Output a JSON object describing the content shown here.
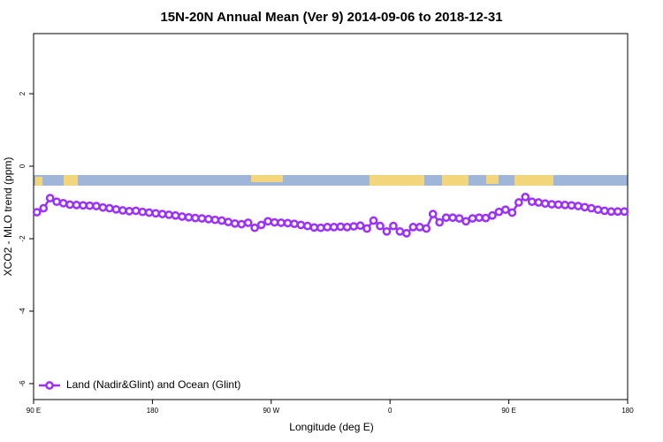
{
  "chart_data": {
    "type": "line",
    "title": "15N-20N Annual Mean (Ver 9)   2014-09-06 to 2018-12-31",
    "xlabel": "Longitude (deg E)",
    "ylabel": "XCO2 - MLO trend (ppm)",
    "x": [
      92.5,
      97.5,
      102.5,
      107.5,
      112.5,
      117.5,
      122.5,
      127.5,
      132.5,
      137.5,
      142.5,
      147.5,
      152.5,
      157.5,
      162.5,
      167.5,
      172.5,
      177.5,
      182.5,
      187.5,
      192.5,
      197.5,
      202.5,
      207.5,
      212.5,
      217.5,
      222.5,
      227.5,
      232.5,
      237.5,
      242.5,
      247.5,
      252.5,
      257.5,
      262.5,
      267.5,
      272.5,
      277.5,
      282.5,
      287.5,
      292.5,
      297.5,
      302.5,
      307.5,
      312.5,
      317.5,
      322.5,
      327.5,
      332.5,
      337.5,
      342.5,
      347.5,
      352.5,
      357.5,
      362.5,
      367.5,
      372.5,
      377.5,
      382.5,
      387.5,
      392.5,
      397.5,
      402.5,
      407.5,
      412.5,
      417.5,
      422.5,
      427.5,
      432.5,
      437.5,
      442.5,
      447.5,
      452.5,
      457.5,
      462.5,
      467.5,
      472.5,
      477.5,
      482.5,
      487.5,
      492.5,
      497.5,
      502.5,
      507.5,
      512.5,
      517.5,
      522.5,
      527.5,
      532.5,
      537.5
    ],
    "series": [
      {
        "name": "Land (Nadir&Glint) and Ocean (Glint)",
        "color": "#9b30ff",
        "values": [
          -1.27,
          -1.16,
          -0.88,
          -0.98,
          -1.02,
          -1.06,
          -1.07,
          -1.08,
          -1.09,
          -1.1,
          -1.14,
          -1.16,
          -1.19,
          -1.22,
          -1.24,
          -1.23,
          -1.26,
          -1.28,
          -1.3,
          -1.32,
          -1.34,
          -1.36,
          -1.39,
          -1.41,
          -1.43,
          -1.44,
          -1.46,
          -1.48,
          -1.5,
          -1.54,
          -1.58,
          -1.6,
          -1.56,
          -1.7,
          -1.62,
          -1.52,
          -1.55,
          -1.56,
          -1.57,
          -1.59,
          -1.62,
          -1.65,
          -1.69,
          -1.7,
          -1.68,
          -1.68,
          -1.67,
          -1.68,
          -1.66,
          -1.64,
          -1.72,
          -1.5,
          -1.65,
          -1.8,
          -1.65,
          -1.8,
          -1.85,
          -1.68,
          -1.68,
          -1.72,
          -1.32,
          -1.55,
          -1.42,
          -1.42,
          -1.44,
          -1.52,
          -1.44,
          -1.42,
          -1.43,
          -1.36,
          -1.26,
          -1.2,
          -1.28,
          -1.0,
          -0.85,
          -0.98,
          -1.0,
          -1.03,
          -1.05,
          -1.06,
          -1.07,
          -1.08,
          -1.1,
          -1.13,
          -1.16,
          -1.2,
          -1.23,
          -1.25,
          -1.25,
          -1.25
        ]
      }
    ],
    "xlim": [
      90,
      540
    ],
    "xticks": [
      {
        "value": 90,
        "label": "90 E"
      },
      180,
      {
        "value": 270,
        "label": "90 W"
      },
      {
        "value": 360,
        "label": "0"
      },
      {
        "value": 450,
        "label": "90 E"
      },
      {
        "value": 540,
        "label": "180"
      }
    ],
    "ylim": [
      -6.44,
      3.66
    ],
    "yticks": [
      -6,
      -4,
      -2,
      0,
      2
    ],
    "legend": "bottom-left"
  }
}
